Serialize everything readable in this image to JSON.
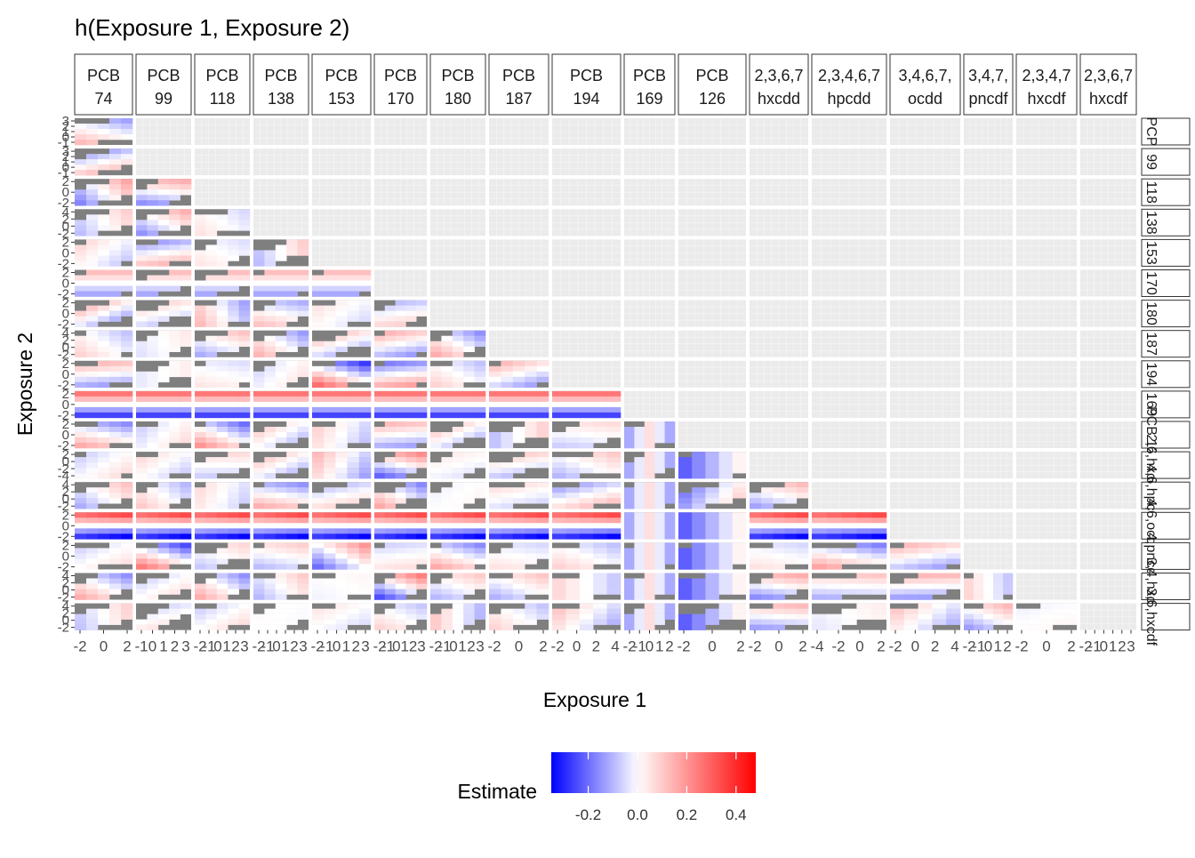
{
  "chart_data": {
    "type": "heatmap",
    "title": "h(Exposure 1, Exposure 2)",
    "xlabel": "Exposure 1",
    "ylabel": "Exposure 2",
    "facet_columns": [
      [
        "PCB",
        "74"
      ],
      [
        "PCB",
        "99"
      ],
      [
        "PCB",
        "118"
      ],
      [
        "PCB",
        "138"
      ],
      [
        "PCB",
        "153"
      ],
      [
        "PCB",
        "170"
      ],
      [
        "PCB",
        "180"
      ],
      [
        "PCB",
        "187"
      ],
      [
        "PCB",
        "194"
      ],
      [
        "PCB",
        "169"
      ],
      [
        "PCB",
        "126"
      ],
      [
        "2,3,6,7",
        "hxcdd"
      ],
      [
        "2,3,4,6,7",
        "hpcdd"
      ],
      [
        "3,4,6,7,",
        "ocdd"
      ],
      [
        "3,4,7,",
        "pncdf"
      ],
      [
        "2,3,4,7",
        "hxcdf"
      ],
      [
        "2,3,6,7",
        "hxcdf"
      ]
    ],
    "facet_rows": [
      "PCP",
      "99",
      "118",
      "138",
      "153",
      "170",
      "180",
      "187",
      "194",
      "169",
      "PCB 126",
      "2,6,hxcdd",
      "4,6,hpcdd",
      "4,6,ocdd",
      "4,pncdf",
      "3,4,hxcdf",
      "3,6,hxcdf"
    ],
    "x_tick_labels": [
      [
        "-2",
        "0",
        "2"
      ],
      [
        "-1",
        "0",
        "1",
        "2",
        "3"
      ],
      [
        "-2",
        "-1",
        "0",
        "1",
        "2",
        "3"
      ],
      [
        "-2",
        "-1",
        "0",
        "1",
        "2",
        "3"
      ],
      [
        "-2",
        "-1",
        "0",
        "1",
        "2",
        "3"
      ],
      [
        "-2",
        "-1",
        "0",
        "1",
        "2",
        "3"
      ],
      [
        "-2",
        "-1",
        "0",
        "1",
        "2",
        "3"
      ],
      [
        "-2",
        "0",
        "2"
      ],
      [
        "-2",
        "0",
        "2",
        "4"
      ],
      [
        "-2",
        "-1",
        "0",
        "1",
        "2"
      ],
      [
        "-2",
        "0",
        "2"
      ],
      [
        "-2",
        "0",
        "2"
      ],
      [
        "-4",
        "-2",
        "0",
        "2"
      ],
      [
        "-2",
        "0",
        "2",
        "4"
      ],
      [
        "-2",
        "-1",
        "0",
        "1",
        "2"
      ],
      [
        "-2",
        "0",
        "2"
      ],
      [
        "-2",
        "-1",
        "0",
        "1",
        "2",
        "3"
      ]
    ],
    "y_tick_labels": [
      [
        "-1",
        "0",
        "1",
        "2",
        "3"
      ],
      [
        "-1",
        "0",
        "1",
        "2",
        "3"
      ],
      [
        "-2",
        "0",
        "2"
      ],
      [
        "-2",
        "0",
        "2",
        "4"
      ],
      [
        "-2",
        "0",
        "2"
      ],
      [
        "-2",
        "0",
        "2"
      ],
      [
        "-2",
        "0",
        "2"
      ],
      [
        "-2",
        "0",
        "2",
        "4"
      ],
      [
        "-2",
        "0",
        "2"
      ],
      [
        "-2",
        "0",
        "2"
      ],
      [
        "-2",
        "0",
        "2"
      ],
      [
        "-4",
        "-2",
        "0",
        "2"
      ],
      [
        "-2",
        "0",
        "2",
        "4"
      ],
      [
        "-2",
        "0",
        "2"
      ],
      [
        "-2",
        "0",
        "2"
      ],
      [
        "-2",
        "0",
        "2",
        "4"
      ],
      [
        "-2",
        "0",
        "2",
        "4"
      ]
    ],
    "legend": {
      "title": "Estimate",
      "position": "bottom",
      "min": -0.35,
      "max": 0.48,
      "ticks": [
        -0.2,
        0.0,
        0.2,
        0.4
      ],
      "tick_labels": [
        "-0.2",
        "0.0",
        "0.2",
        "0.4"
      ],
      "low_color": "#0000ff",
      "mid_color": "#ffffff",
      "high_color": "#ff0000"
    },
    "background_color": "#ebebeb",
    "missing_color": "#7f7f7f"
  }
}
